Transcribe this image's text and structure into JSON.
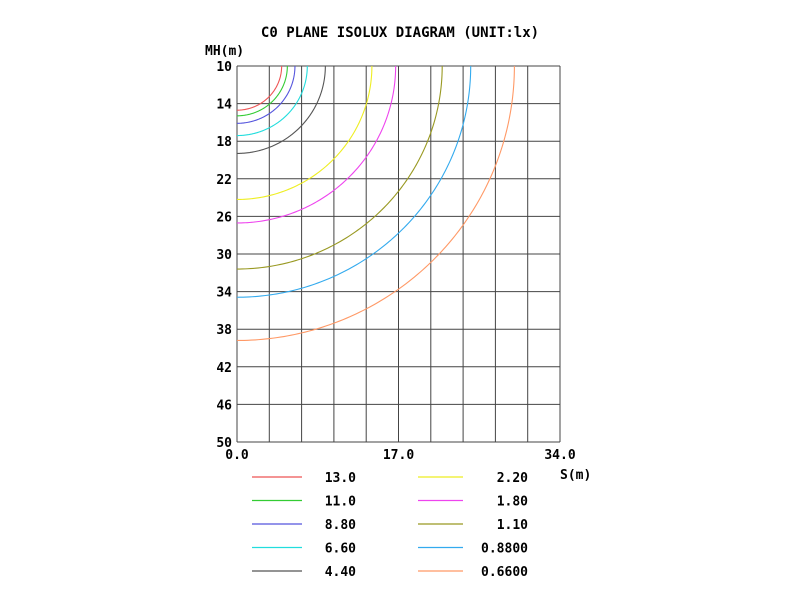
{
  "chart_data": {
    "type": "line",
    "title": "C0 PLANE ISOLUX DIAGRAM (UNIT:lx)",
    "xlabel": "S(m)",
    "ylabel": "MH(m)",
    "xlim": [
      0,
      34.0
    ],
    "ylim": [
      10,
      50
    ],
    "y_inverted": true,
    "grid": true,
    "x_ticks": [
      "0.0",
      "17.0",
      "34.0"
    ],
    "x_tick_values": [
      0,
      17,
      34
    ],
    "y_ticks": [
      "10",
      "14",
      "18",
      "22",
      "26",
      "30",
      "34",
      "38",
      "42",
      "46",
      "50"
    ],
    "y_tick_values": [
      10,
      14,
      18,
      22,
      26,
      30,
      34,
      38,
      42,
      46,
      50
    ],
    "legend_placement": "bottom",
    "series": [
      {
        "name": "13.0",
        "color": "#ee5555",
        "radius": 4.7
      },
      {
        "name": "11.0",
        "color": "#33cc33",
        "radius": 5.3
      },
      {
        "name": "8.80",
        "color": "#5555dd",
        "radius": 6.1
      },
      {
        "name": "6.60",
        "color": "#22dddd",
        "radius": 7.4
      },
      {
        "name": "4.40",
        "color": "#555555",
        "radius": 9.3
      },
      {
        "name": "2.20",
        "color": "#eeee22",
        "radius": 14.2
      },
      {
        "name": "1.80",
        "color": "#ee44ee",
        "radius": 16.7
      },
      {
        "name": "1.10",
        "color": "#999922",
        "radius": 21.6
      },
      {
        "name": "0.8800",
        "color": "#33aaee",
        "radius": 24.6
      },
      {
        "name": "0.6600",
        "color": "#ff9966",
        "radius": 29.2
      }
    ]
  }
}
